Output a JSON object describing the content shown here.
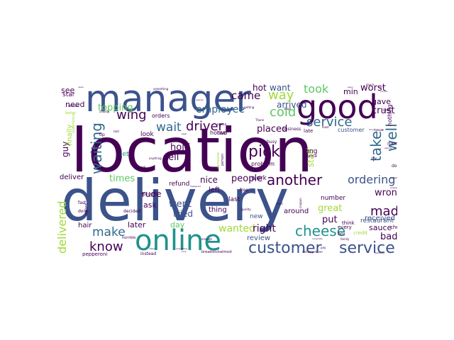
{
  "wordcloud": {
    "palette": {
      "dark_purple": "#440154",
      "indigo": "#3b528b",
      "blue": "#31688e",
      "teal": "#21918c",
      "green": "#5ec962",
      "yellow_green": "#a0da39",
      "yellow": "#fde725"
    },
    "words": [
      {
        "text": "location",
        "color": "#440154",
        "weight": 1.0
      },
      {
        "text": "delivery",
        "color": "#3b528b",
        "weight": 0.98
      },
      {
        "text": "manager",
        "color": "#3b528b",
        "weight": 0.62
      },
      {
        "text": "good",
        "color": "#440154",
        "weight": 0.55
      },
      {
        "text": "online",
        "color": "#21918c",
        "weight": 0.48
      },
      {
        "text": "customer",
        "color": "#3b528b",
        "weight": 0.32
      },
      {
        "text": "service",
        "color": "#3b528b",
        "weight": 0.32
      },
      {
        "text": "service",
        "color": "#31688e",
        "weight": 0.28
      },
      {
        "text": "waiting",
        "color": "#31688e",
        "weight": 0.28
      },
      {
        "text": "take",
        "color": "#31688e",
        "weight": 0.28
      },
      {
        "text": "well",
        "color": "#31688e",
        "weight": 0.26
      },
      {
        "text": "pick",
        "color": "#440154",
        "weight": 0.26
      },
      {
        "text": "another",
        "color": "#440154",
        "weight": 0.26
      },
      {
        "text": "cheese",
        "color": "#21918c",
        "weight": 0.26
      },
      {
        "text": "wing",
        "color": "#440154",
        "weight": 0.24
      },
      {
        "text": "driver",
        "color": "#440154",
        "weight": 0.24
      },
      {
        "text": "wait",
        "color": "#31688e",
        "weight": 0.22
      },
      {
        "text": "way",
        "color": "#a0da39",
        "weight": 0.22
      },
      {
        "text": "cold",
        "color": "#5ec962",
        "weight": 0.22
      },
      {
        "text": "know",
        "color": "#440154",
        "weight": 0.22
      },
      {
        "text": "made",
        "color": "#440154",
        "weight": 0.22
      },
      {
        "text": "make",
        "color": "#31688e",
        "weight": 0.22
      },
      {
        "text": "delivered",
        "color": "#a0da39",
        "weight": 0.2
      },
      {
        "text": "took",
        "color": "#5ec962",
        "weight": 0.2
      },
      {
        "text": "ordering",
        "color": "#3b528b",
        "weight": 0.2
      },
      {
        "text": "came",
        "color": "#440154",
        "weight": 0.18
      },
      {
        "text": "employee",
        "color": "#31688e",
        "weight": 0.17
      },
      {
        "text": "wanted",
        "color": "#a0da39",
        "weight": 0.16
      },
      {
        "text": "right",
        "color": "#440154",
        "weight": 0.16
      },
      {
        "text": "worst",
        "color": "#440154",
        "weight": 0.16
      },
      {
        "text": "crust",
        "color": "#440154",
        "weight": 0.16
      },
      {
        "text": "topping",
        "color": "#5ec962",
        "weight": 0.15
      },
      {
        "text": "people",
        "color": "#440154",
        "weight": 0.15
      },
      {
        "text": "hot",
        "color": "#440154",
        "weight": 0.14
      },
      {
        "text": "want",
        "color": "#3b528b",
        "weight": 0.14
      },
      {
        "text": "placed",
        "color": "#440154",
        "weight": 0.14
      },
      {
        "text": "arrived",
        "color": "#3b528b",
        "weight": 0.14
      },
      {
        "text": "times",
        "color": "#5ec962",
        "weight": 0.14
      },
      {
        "text": "tell",
        "color": "#440154",
        "weight": 0.14
      },
      {
        "text": "hold",
        "color": "#440154",
        "weight": 0.14
      },
      {
        "text": "went",
        "color": "#3b528b",
        "weight": 0.14
      },
      {
        "text": "put",
        "color": "#440154",
        "weight": 0.14
      },
      {
        "text": "great",
        "color": "#a0da39",
        "weight": 0.14
      },
      {
        "text": "wrong",
        "color": "#440154",
        "weight": 0.14
      },
      {
        "text": "bad",
        "color": "#440154",
        "weight": 0.14
      },
      {
        "text": "staff",
        "color": "#a0da39",
        "weight": 0.14
      },
      {
        "text": "guy",
        "color": "#440154",
        "weight": 0.13
      },
      {
        "text": "nice",
        "color": "#440154",
        "weight": 0.13
      },
      {
        "text": "rude",
        "color": "#440154",
        "weight": 0.13
      },
      {
        "text": "tried",
        "color": "#3b528b",
        "weight": 0.13
      },
      {
        "text": "later",
        "color": "#440154",
        "weight": 0.12
      },
      {
        "text": "need",
        "color": "#440154",
        "weight": 0.12
      },
      {
        "text": "see",
        "color": "#440154",
        "weight": 0.12
      },
      {
        "text": "min",
        "color": "#440154",
        "weight": 0.12
      },
      {
        "text": "gave",
        "color": "#440154",
        "weight": 0.12
      },
      {
        "text": "ask",
        "color": "#440154",
        "weight": 0.12
      },
      {
        "text": "day",
        "color": "#5ec962",
        "weight": 0.12
      },
      {
        "text": "sauce",
        "color": "#440154",
        "weight": 0.12
      },
      {
        "text": "received",
        "color": "#3b528b",
        "weight": 0.11
      },
      {
        "text": "restaurant",
        "color": "#3b528b",
        "weight": 0.1
      },
      {
        "text": "finally",
        "color": "#a0da39",
        "weight": 0.1
      },
      {
        "text": "deliver",
        "color": "#440154",
        "weight": 0.1
      },
      {
        "text": "review",
        "color": "#3b528b",
        "weight": 0.1
      },
      {
        "text": "around",
        "color": "#440154",
        "weight": 0.1
      },
      {
        "text": "thing",
        "color": "#440154",
        "weight": 0.1
      },
      {
        "text": "left",
        "color": "#440154",
        "weight": 0.1
      },
      {
        "text": "hair",
        "color": "#440154",
        "weight": 0.1
      },
      {
        "text": "star",
        "color": "#440154",
        "weight": 0.09
      },
      {
        "text": "refund",
        "color": "#440154",
        "weight": 0.09
      },
      {
        "text": "let",
        "color": "#21918c",
        "weight": 0.09
      },
      {
        "text": "look",
        "color": "#440154",
        "weight": 0.09
      },
      {
        "text": "long",
        "color": "#440154",
        "weight": 0.09
      },
      {
        "text": "number",
        "color": "#440154",
        "weight": 0.09
      },
      {
        "text": "last",
        "color": "#440154",
        "weight": 0.09
      },
      {
        "text": "new",
        "color": "#3b528b",
        "weight": 0.09
      },
      {
        "text": "work",
        "color": "#440154",
        "weight": 0.09
      },
      {
        "text": "problem",
        "color": "#440154",
        "weight": 0.08
      },
      {
        "text": "two",
        "color": "#440154",
        "weight": 0.08
      },
      {
        "text": "nothing",
        "color": "#440154",
        "weight": 0.08
      },
      {
        "text": "home",
        "color": "#440154",
        "weight": 0.08
      },
      {
        "text": "orders",
        "color": "#440154",
        "weight": 0.08
      },
      {
        "text": "customer",
        "color": "#3b528b",
        "weight": 0.08
      },
      {
        "text": "every",
        "color": "#440154",
        "weight": 0.07
      },
      {
        "text": "pepperoni",
        "color": "#440154",
        "weight": 0.07
      },
      {
        "text": "credit",
        "color": "#a0da39",
        "weight": 0.07
      },
      {
        "text": "name",
        "color": "#440154",
        "weight": 0.07
      },
      {
        "text": "check",
        "color": "#440154",
        "weight": 0.07
      },
      {
        "text": "think",
        "color": "#440154",
        "weight": 0.07
      },
      {
        "text": "late",
        "color": "#440154",
        "weight": 0.07
      },
      {
        "text": "price",
        "color": "#440154",
        "weight": 0.06
      },
      {
        "text": "fast",
        "color": "#440154",
        "weight": 0.06
      },
      {
        "text": "done",
        "color": "#440154",
        "weight": 0.06
      },
      {
        "text": "tip",
        "color": "#440154",
        "weight": 0.06
      },
      {
        "text": "box",
        "color": "#440154",
        "weight": 0.06
      },
      {
        "text": "busy",
        "color": "#440154",
        "weight": 0.06
      },
      {
        "text": "door",
        "color": "#440154",
        "weight": 0.06
      },
      {
        "text": "free",
        "color": "#440154",
        "weight": 0.06
      },
      {
        "text": "says",
        "color": "#440154",
        "weight": 0.06
      },
      {
        "text": "business",
        "color": "#440154",
        "weight": 0.06
      },
      {
        "text": "instead",
        "color": "#440154",
        "weight": 0.06
      },
      {
        "text": "tonight",
        "color": "#440154",
        "weight": 0.06
      },
      {
        "text": "decided",
        "color": "#440154",
        "weight": 0.06
      },
      {
        "text": "issue",
        "color": "#440154",
        "weight": 0.05
      },
      {
        "text": "love",
        "color": "#440154",
        "weight": 0.05
      },
      {
        "text": "try",
        "color": "#440154",
        "weight": 0.05
      },
      {
        "text": "horrible",
        "color": "#440154",
        "weight": 0.05
      },
      {
        "text": "breadstick",
        "color": "#440154",
        "weight": 0.05
      },
      {
        "text": "almost",
        "color": "#440154",
        "weight": 0.05
      },
      {
        "text": "experience",
        "color": "#a0da39",
        "weight": 0.05
      },
      {
        "text": "better",
        "color": "#a0da39",
        "weight": 0.05
      },
      {
        "text": "waited",
        "color": "#440154",
        "weight": 0.05
      },
      {
        "text": "person",
        "color": "#440154",
        "weight": 0.05
      },
      {
        "text": "someone",
        "color": "#a0da39",
        "weight": 0.05
      },
      {
        "text": "Thank",
        "color": "#440154",
        "weight": 0.04
      },
      {
        "text": "much",
        "color": "#440154",
        "weight": 0.04
      },
      {
        "text": "large",
        "color": "#440154",
        "weight": 0.04
      },
      {
        "text": "least",
        "color": "#440154",
        "weight": 0.04
      },
      {
        "text": "without",
        "color": "#440154",
        "weight": 0.04
      },
      {
        "text": "usually",
        "color": "#440154",
        "weight": 0.04
      },
      {
        "text": "quality",
        "color": "#440154",
        "weight": 0.04
      },
      {
        "text": "next",
        "color": "#440154",
        "weight": 0.04
      },
      {
        "text": "coupon",
        "color": "#440154",
        "weight": 0.04
      },
      {
        "text": "looked",
        "color": "#440154",
        "weight": 0.04
      },
      {
        "text": "getting",
        "color": "#440154",
        "weight": 0.04
      },
      {
        "text": "delivery driver",
        "color": "#440154",
        "weight": 0.035
      },
      {
        "text": "family",
        "color": "#440154",
        "weight": 0.035
      },
      {
        "text": "enough",
        "color": "#440154",
        "weight": 0.035
      },
      {
        "text": "told",
        "color": "#440154",
        "weight": 0.035
      },
      {
        "text": "pay",
        "color": "#440154",
        "weight": 0.035
      },
      {
        "text": "anything",
        "color": "#440154",
        "weight": 0.035
      },
      {
        "text": "something",
        "color": "#440154",
        "weight": 0.035
      },
      {
        "text": "happened",
        "color": "#440154",
        "weight": 0.03
      },
      {
        "text": "answered",
        "color": "#440154",
        "weight": 0.03
      },
      {
        "text": "actually",
        "color": "#440154",
        "weight": 0.03
      },
      {
        "text": "asking",
        "color": "#440154",
        "weight": 0.03
      },
      {
        "text": "corporate",
        "color": "#440154",
        "weight": 0.03
      },
      {
        "text": "definitely",
        "color": "#440154",
        "weight": 0.03
      },
      {
        "text": "special",
        "color": "#440154",
        "weight": 0.03
      },
      {
        "text": "drove",
        "color": "#440154",
        "weight": 0.03
      },
      {
        "text": "sure",
        "color": "#440154",
        "weight": 0.03
      },
      {
        "text": "dead",
        "color": "#440154",
        "weight": 0.03
      },
      {
        "text": "wasn",
        "color": "#440154",
        "weight": 0.03
      },
      {
        "text": "keep",
        "color": "#440154",
        "weight": 0.03
      },
      {
        "text": "everything",
        "color": "#440154",
        "weight": 0.03
      },
      {
        "text": "called",
        "color": "#440154",
        "weight": 0.03
      },
      {
        "text": "sorry",
        "color": "#440154",
        "weight": 0.03
      },
      {
        "text": "correct",
        "color": "#440154",
        "weight": 0.03
      }
    ]
  }
}
